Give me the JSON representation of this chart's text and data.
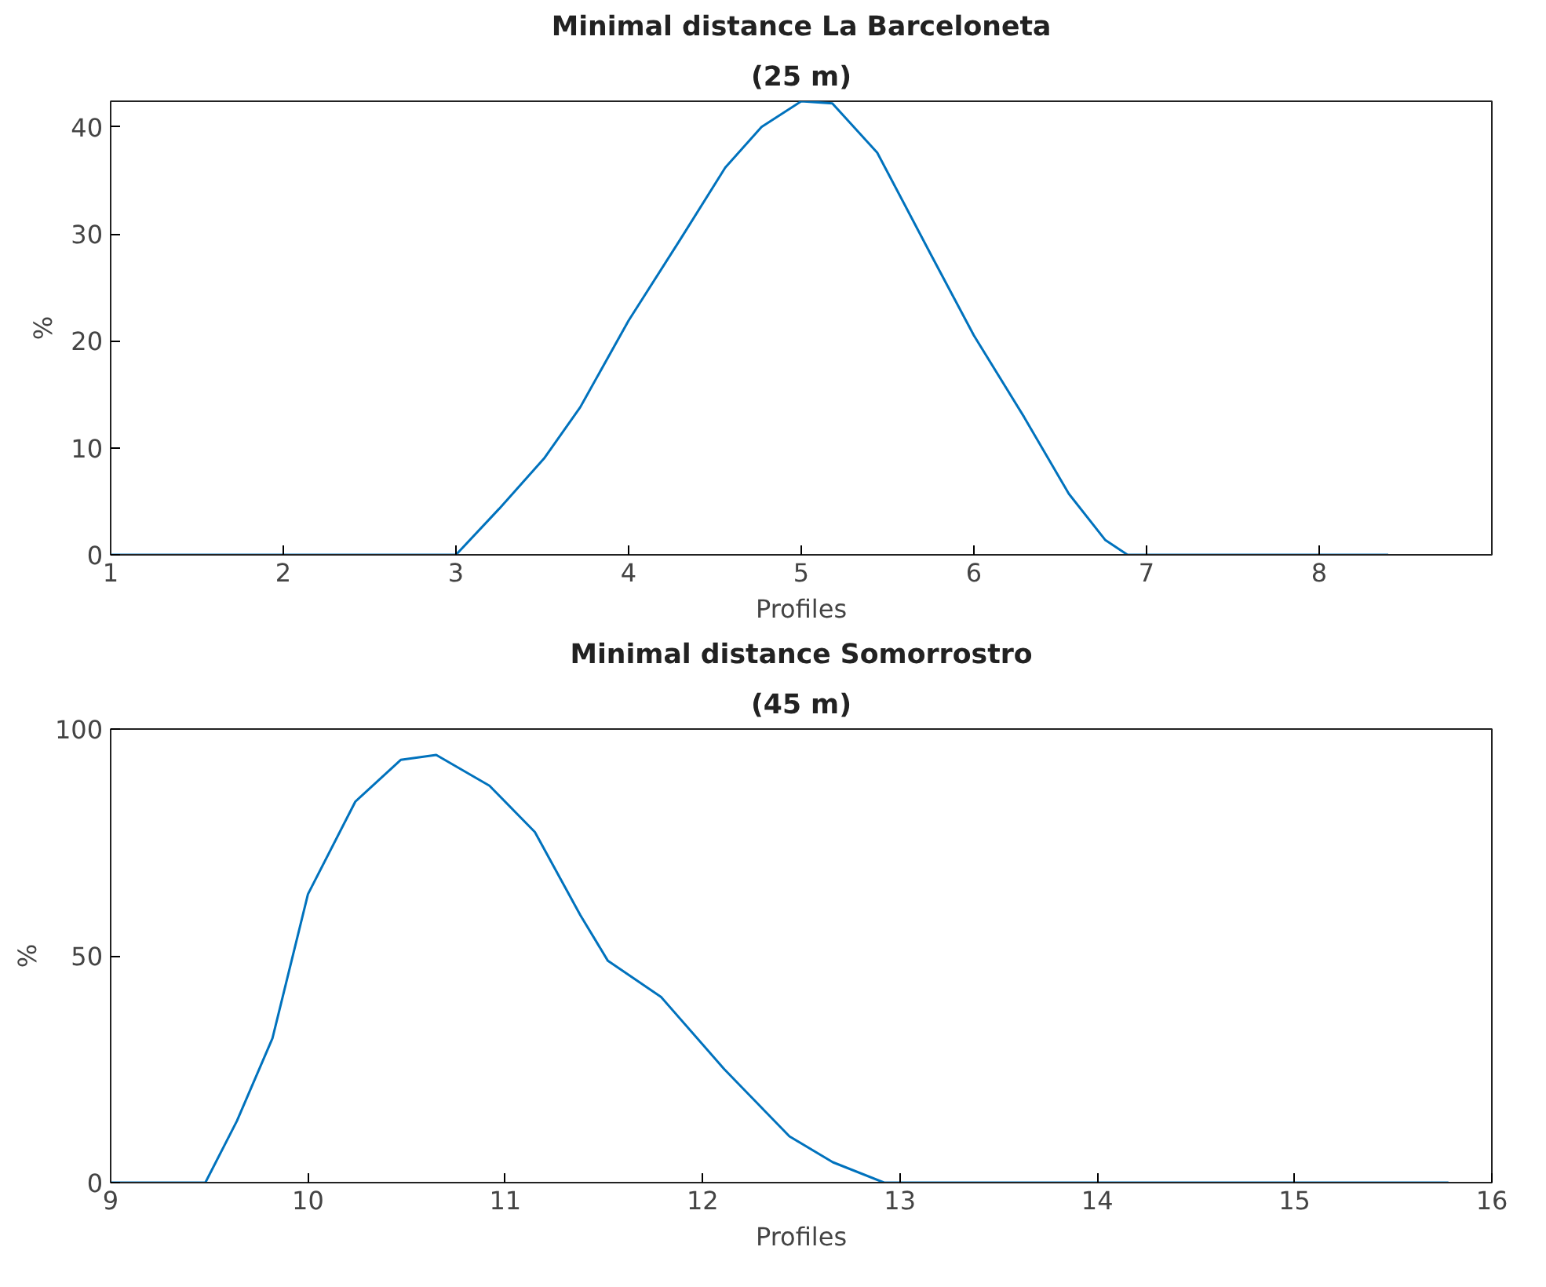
{
  "chart_data": [
    {
      "type": "line",
      "title": "Minimal distance La Barceloneta",
      "subtitle": "(25 m)",
      "xlabel": "Profiles",
      "ylabel": "%",
      "xlim": [
        1,
        9
      ],
      "ylim": [
        0,
        42.4
      ],
      "xticks": [
        1,
        2,
        3,
        4,
        5,
        6,
        7,
        8
      ],
      "yticks": [
        0,
        10,
        20,
        30,
        40
      ],
      "grid": false,
      "series": [
        {
          "color": "#0072bd",
          "x": [
            1,
            3.0,
            3.25,
            3.51,
            3.72,
            4.0,
            4.3,
            4.56,
            4.77,
            5.0,
            5.18,
            5.44,
            5.75,
            6.0,
            6.29,
            6.55,
            6.76,
            6.89,
            8.4
          ],
          "values": [
            0,
            0,
            4.3,
            9.0,
            13.8,
            21.9,
            29.5,
            36.2,
            40,
            42.4,
            42.2,
            37.6,
            28.1,
            20.5,
            12.9,
            5.7,
            1.4,
            0,
            0
          ]
        }
      ]
    },
    {
      "type": "line",
      "title": "Minimal distance Somorrostro",
      "subtitle": "(45 m)",
      "xlabel": "Profiles",
      "ylabel": "%",
      "xlim": [
        9,
        16
      ],
      "ylim": [
        0,
        100
      ],
      "xticks": [
        9,
        10,
        11,
        12,
        13,
        14,
        15,
        16
      ],
      "yticks": [
        0,
        50,
        100
      ],
      "grid": false,
      "series": [
        {
          "color": "#0072bd",
          "x": [
            9.0,
            9.48,
            9.64,
            9.82,
            10.0,
            10.24,
            10.47,
            10.65,
            10.92,
            11.15,
            11.38,
            11.52,
            11.79,
            12.11,
            12.44,
            12.66,
            12.92,
            15.78
          ],
          "values": [
            0,
            0,
            13.6,
            31.8,
            63.6,
            84,
            93.2,
            94.3,
            87.5,
            77.3,
            59,
            48.9,
            40.9,
            25,
            10.2,
            4.5,
            0,
            0
          ]
        }
      ]
    }
  ]
}
